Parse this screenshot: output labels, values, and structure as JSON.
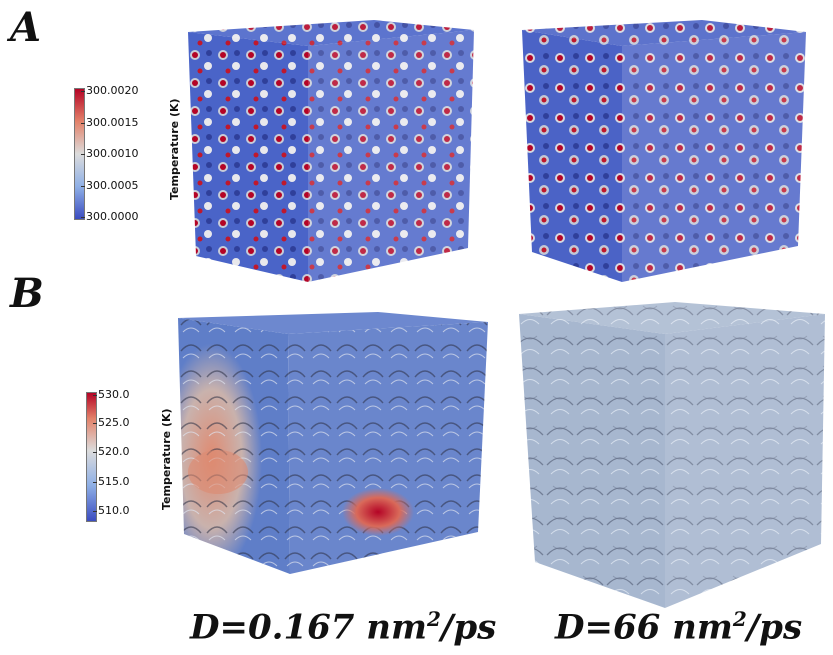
{
  "panels": {
    "a": {
      "letter": "A",
      "colorbar": {
        "title": "Temperature (K)",
        "ticks": [
          "300.0020",
          "300.0015",
          "300.0010",
          "300.0005",
          "300.0000"
        ]
      }
    },
    "b": {
      "letter": "B",
      "colorbar": {
        "title": "Temperature (K)",
        "ticks": [
          "530.0",
          "525.0",
          "520.0",
          "515.0",
          "510.0"
        ]
      }
    }
  },
  "captions": {
    "left": {
      "main": "D=0.167 nm",
      "sup": "2",
      "tail": "/ps"
    },
    "right": {
      "main": "D=66 nm",
      "sup": "2",
      "tail": "/ps"
    }
  },
  "colors": {
    "cold": "#3b4cc0",
    "mid": "#dcdcdc",
    "hot": "#b40426",
    "grey_blue": "#a7b7cf"
  }
}
